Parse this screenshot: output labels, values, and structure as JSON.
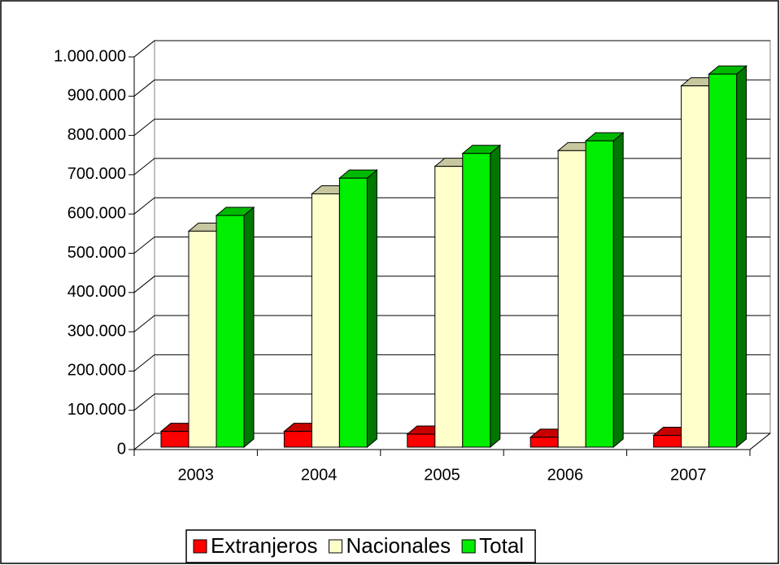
{
  "chart_data": {
    "type": "bar3d",
    "categories": [
      "2003",
      "2004",
      "2005",
      "2006",
      "2007"
    ],
    "series": [
      {
        "name": "Extranjeros",
        "color": "#ff0000",
        "values": [
          40000,
          40000,
          33000,
          25000,
          30000
        ]
      },
      {
        "name": "Nacionales",
        "color": "#ffffcc",
        "values": [
          550000,
          645000,
          715000,
          755000,
          920000
        ]
      },
      {
        "name": "Total",
        "color": "#00ee00",
        "values": [
          590000,
          685000,
          748000,
          780000,
          950000
        ]
      }
    ],
    "ylim": [
      0,
      1000000
    ],
    "yticks": [
      0,
      {
        "value": 100000,
        "label": "100.000"
      },
      {
        "value": 200000,
        "label": "200.000"
      },
      {
        "value": 300000,
        "label": "300.000"
      },
      {
        "value": 400000,
        "label": "400.000"
      },
      {
        "value": 500000,
        "label": "500.000"
      },
      {
        "value": 600000,
        "label": "600.000"
      },
      {
        "value": 700000,
        "label": "700.000"
      },
      {
        "value": 800000,
        "label": "800.000"
      },
      {
        "value": 900000,
        "label": "900.000"
      },
      {
        "value": 1000000,
        "label": "1.000.000"
      }
    ],
    "grid": true,
    "legend": "bottom"
  }
}
